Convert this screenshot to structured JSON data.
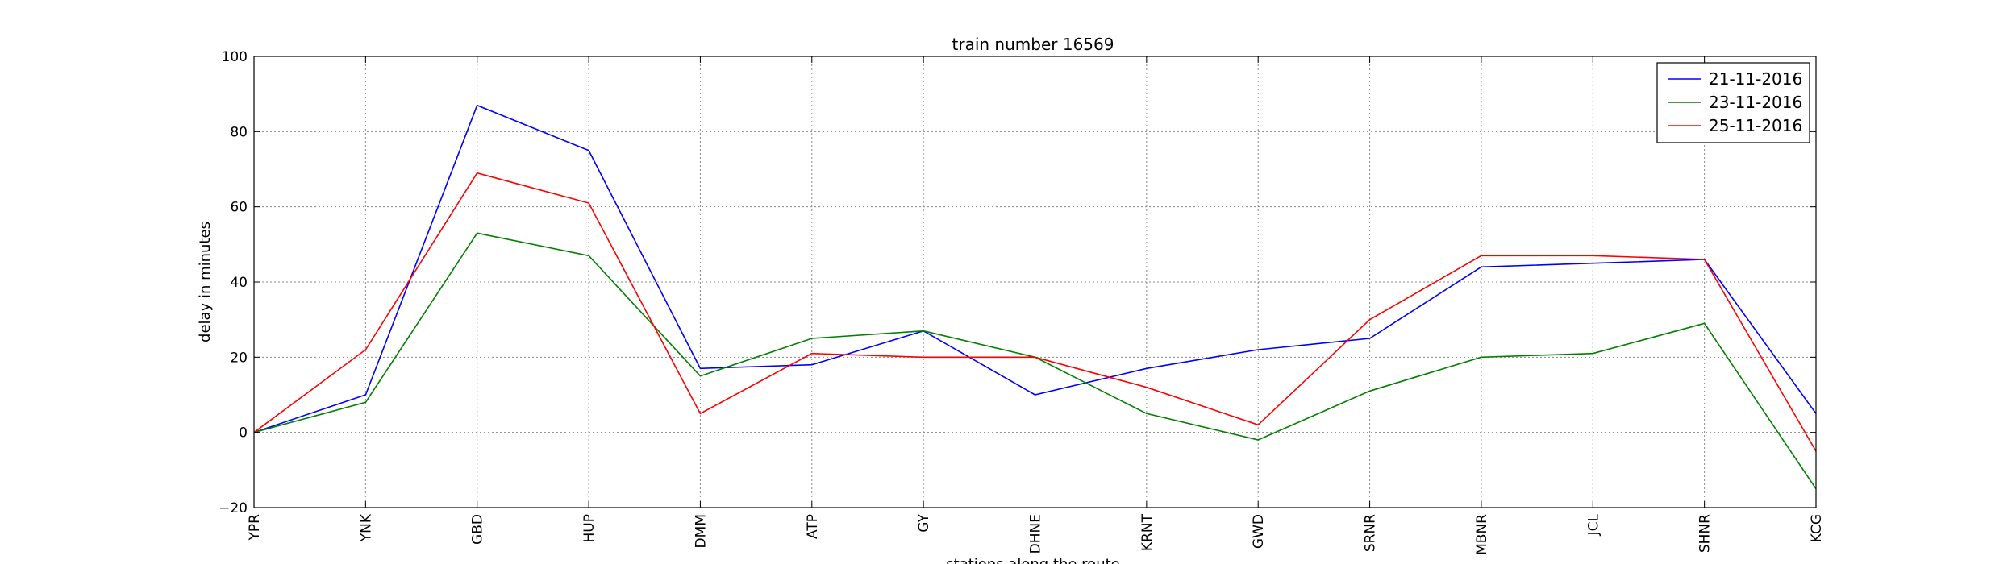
{
  "chart_data": {
    "type": "line",
    "title": "train number 16569",
    "xlabel": "stations along the route",
    "ylabel": "delay in minutes",
    "categories": [
      "YPR",
      "YNK",
      "GBD",
      "HUP",
      "DMM",
      "ATP",
      "GY",
      "DHNE",
      "KRNT",
      "GWD",
      "SRNR",
      "MBNR",
      "JCL",
      "SHNR",
      "KCG"
    ],
    "ylim": [
      -20,
      100
    ],
    "yticks": [
      -20,
      0,
      20,
      40,
      60,
      80,
      100
    ],
    "ytick_labels": [
      "−20",
      "0",
      "20",
      "40",
      "60",
      "80",
      "100"
    ],
    "grid": true,
    "legend_position": "top-right",
    "series": [
      {
        "name": "21-11-2016",
        "color": "#0000ff",
        "values": [
          0,
          10,
          87,
          75,
          17,
          18,
          27,
          10,
          17,
          22,
          25,
          44,
          45,
          46,
          5
        ]
      },
      {
        "name": "23-11-2016",
        "color": "#008000",
        "values": [
          0,
          8,
          53,
          47,
          15,
          25,
          27,
          20,
          5,
          -2,
          11,
          20,
          21,
          29,
          -15
        ]
      },
      {
        "name": "25-11-2016",
        "color": "#ff0000",
        "values": [
          0,
          22,
          69,
          61,
          5,
          21,
          20,
          20,
          12,
          2,
          30,
          47,
          47,
          46,
          -5
        ]
      }
    ]
  }
}
